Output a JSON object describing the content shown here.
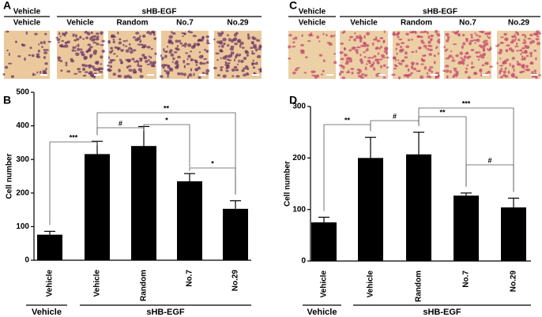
{
  "figure": {
    "top_panels": [
      {
        "letter": "A",
        "group_labels": [
          "Vehicle",
          "sHB-EGF"
        ],
        "captions": [
          "Vehicle",
          "Vehicle",
          "Random",
          "No.7",
          "No.29"
        ]
      },
      {
        "letter": "C",
        "group_labels": [
          "Vehicle",
          "sHB-EGF"
        ],
        "captions": [
          "Vehicle",
          "Vehicle",
          "Random",
          "No.7",
          "No.29"
        ]
      }
    ]
  },
  "chart_data": [
    {
      "type": "bar",
      "letter": "B",
      "y_label": "Cell number",
      "categories": [
        "Vehicle",
        "Vehicle",
        "Random",
        "No.7",
        "No.29"
      ],
      "values": [
        76,
        316,
        340,
        235,
        153
      ],
      "errors": [
        10,
        38,
        58,
        23,
        24
      ],
      "color": "#000000",
      "ylim": [
        0,
        500
      ],
      "yticks": [
        0,
        100,
        200,
        300,
        400,
        500
      ],
      "group_labels": [
        "Vehicle",
        "sHB-EGF"
      ],
      "significance": [
        {
          "from": 0,
          "to": 1,
          "text": "***"
        },
        {
          "from": 1,
          "to": 2,
          "text": "#"
        },
        {
          "from": 2,
          "to": 3,
          "text": "*"
        },
        {
          "from": 1,
          "to": 4,
          "text": "**"
        },
        {
          "from": 3,
          "to": 4,
          "text": "*"
        }
      ]
    },
    {
      "type": "bar",
      "letter": "D",
      "y_label": "Cell number",
      "categories": [
        "Vehicle",
        "Vehicle",
        "Random",
        "No.7",
        "No.29"
      ],
      "values": [
        75,
        200,
        207,
        127,
        104
      ],
      "errors": [
        10,
        40,
        43,
        5,
        18
      ],
      "color": "#000000",
      "ylim": [
        0,
        300
      ],
      "yticks": [
        0,
        100,
        200,
        300
      ],
      "group_labels": [
        "Vehicle",
        "sHB-EGF"
      ],
      "significance": [
        {
          "from": 0,
          "to": 1,
          "text": "**"
        },
        {
          "from": 1,
          "to": 2,
          "text": "#"
        },
        {
          "from": 2,
          "to": 3,
          "text": "**"
        },
        {
          "from": 2,
          "to": 4,
          "text": "***"
        },
        {
          "from": 3,
          "to": 4,
          "text": "#"
        }
      ]
    }
  ]
}
